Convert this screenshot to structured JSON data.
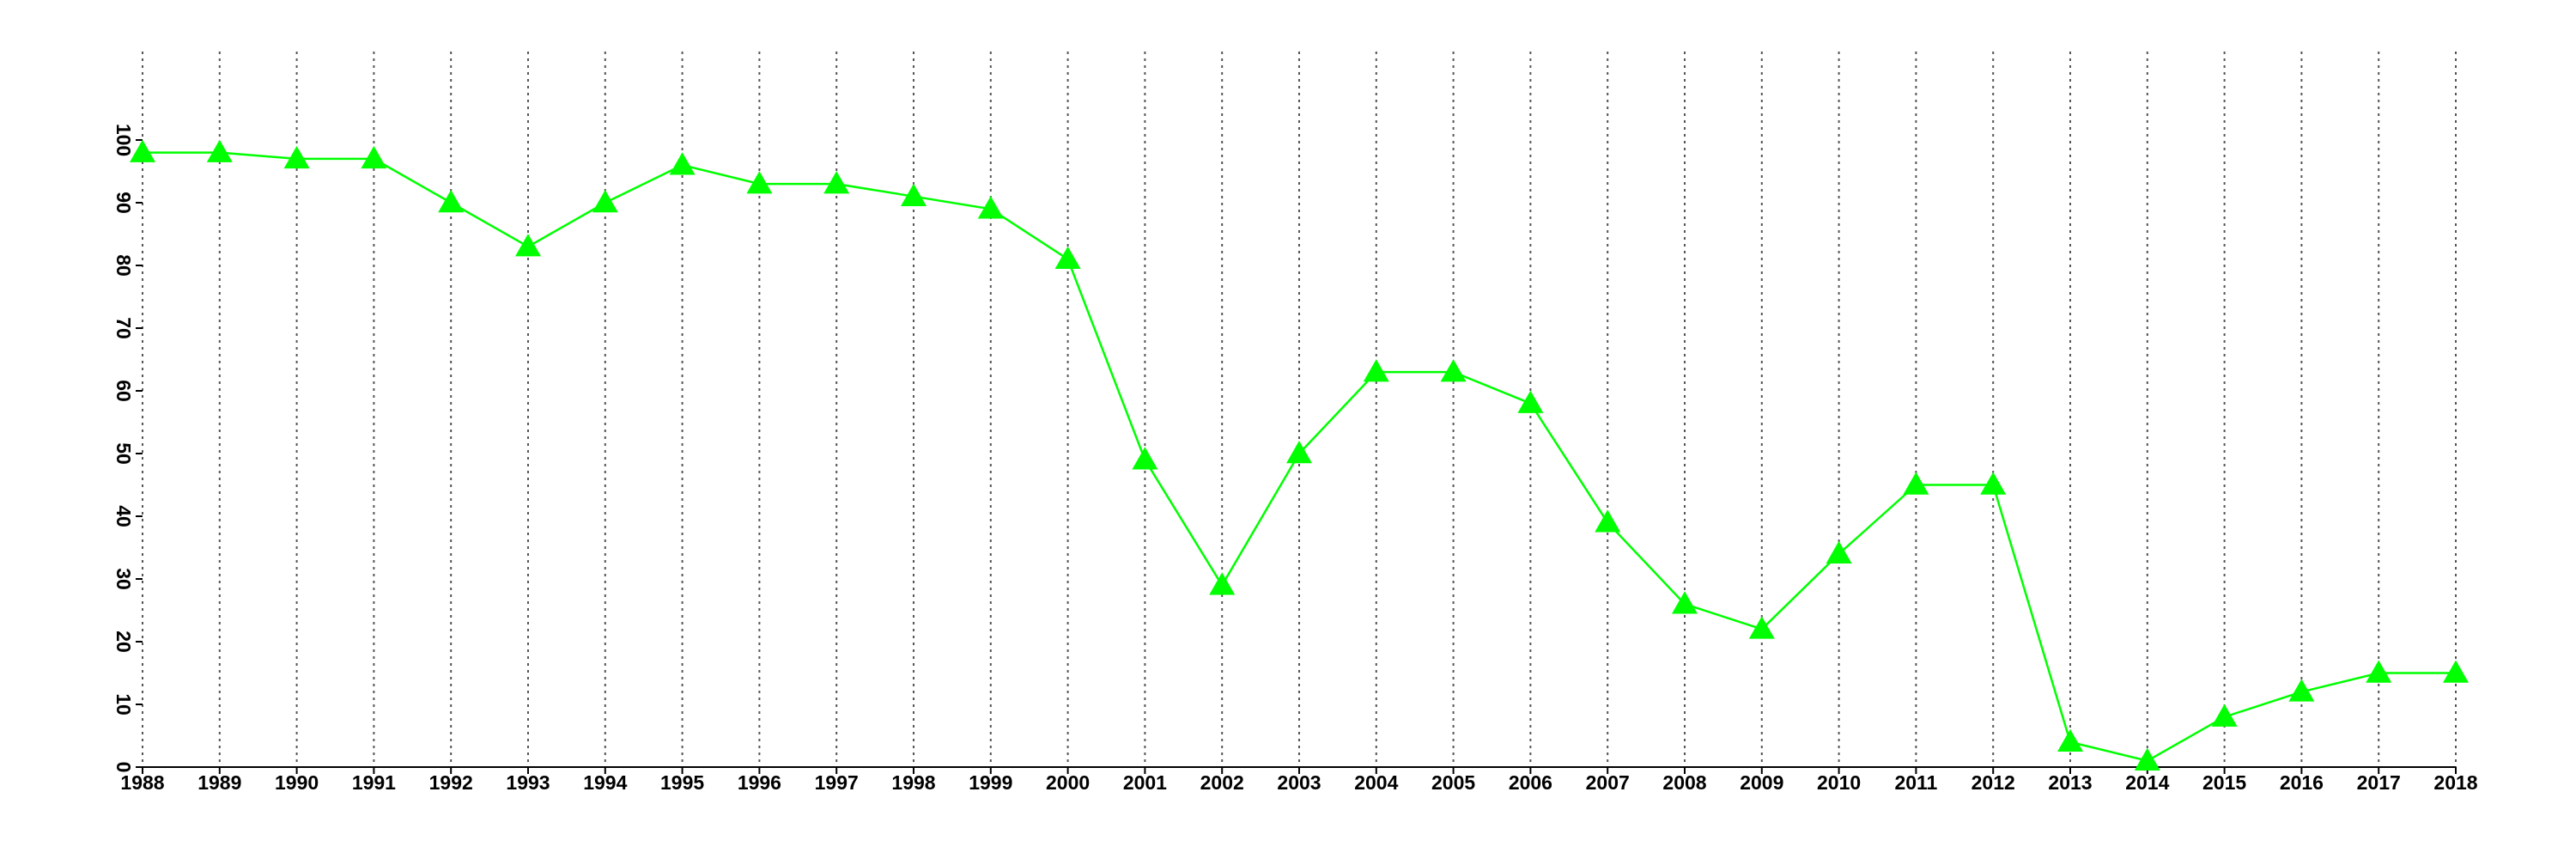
{
  "chart_data": {
    "type": "line",
    "x": [
      1988,
      1989,
      1990,
      1991,
      1992,
      1993,
      1994,
      1995,
      1996,
      1997,
      1998,
      1999,
      2000,
      2001,
      2002,
      2003,
      2004,
      2005,
      2006,
      2007,
      2008,
      2009,
      2010,
      2011,
      2012,
      2013,
      2014,
      2015,
      2016,
      2017,
      2018
    ],
    "series": [
      {
        "color": "#00ff00",
        "values": [
          98,
          98,
          97,
          97,
          90,
          83,
          90,
          96,
          93,
          93,
          91,
          89,
          81,
          49,
          29,
          50,
          63,
          63,
          58,
          39,
          26,
          22,
          34,
          45,
          45,
          4,
          1,
          8,
          12,
          15,
          15
        ]
      }
    ],
    "xlim": [
      1988,
      2018
    ],
    "ylim": [
      0,
      100
    ],
    "yticks": [
      0,
      10,
      20,
      30,
      40,
      50,
      60,
      70,
      80,
      90,
      100
    ],
    "grid": true,
    "marker": "triangle"
  }
}
